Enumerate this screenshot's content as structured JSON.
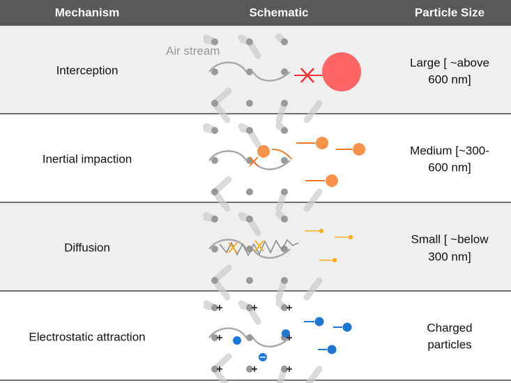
{
  "table": {
    "header": [
      "Mechanism",
      "Schematic",
      "Particle Size"
    ],
    "rows": [
      {
        "mechanism": "Interception",
        "size": [
          "Large [ ~above",
          "600 nm]"
        ]
      },
      {
        "mechanism": "Inertial impaction",
        "size": [
          "Medium [~300-",
          "600 nm]"
        ]
      },
      {
        "mechanism": "Diffusion",
        "size": [
          "Small [ ~below",
          "300 nm]"
        ]
      },
      {
        "mechanism": "Electrostatic attraction",
        "size": [
          "Charged",
          "particles"
        ]
      }
    ]
  },
  "schematic": {
    "annotation": "Air stream"
  }
}
